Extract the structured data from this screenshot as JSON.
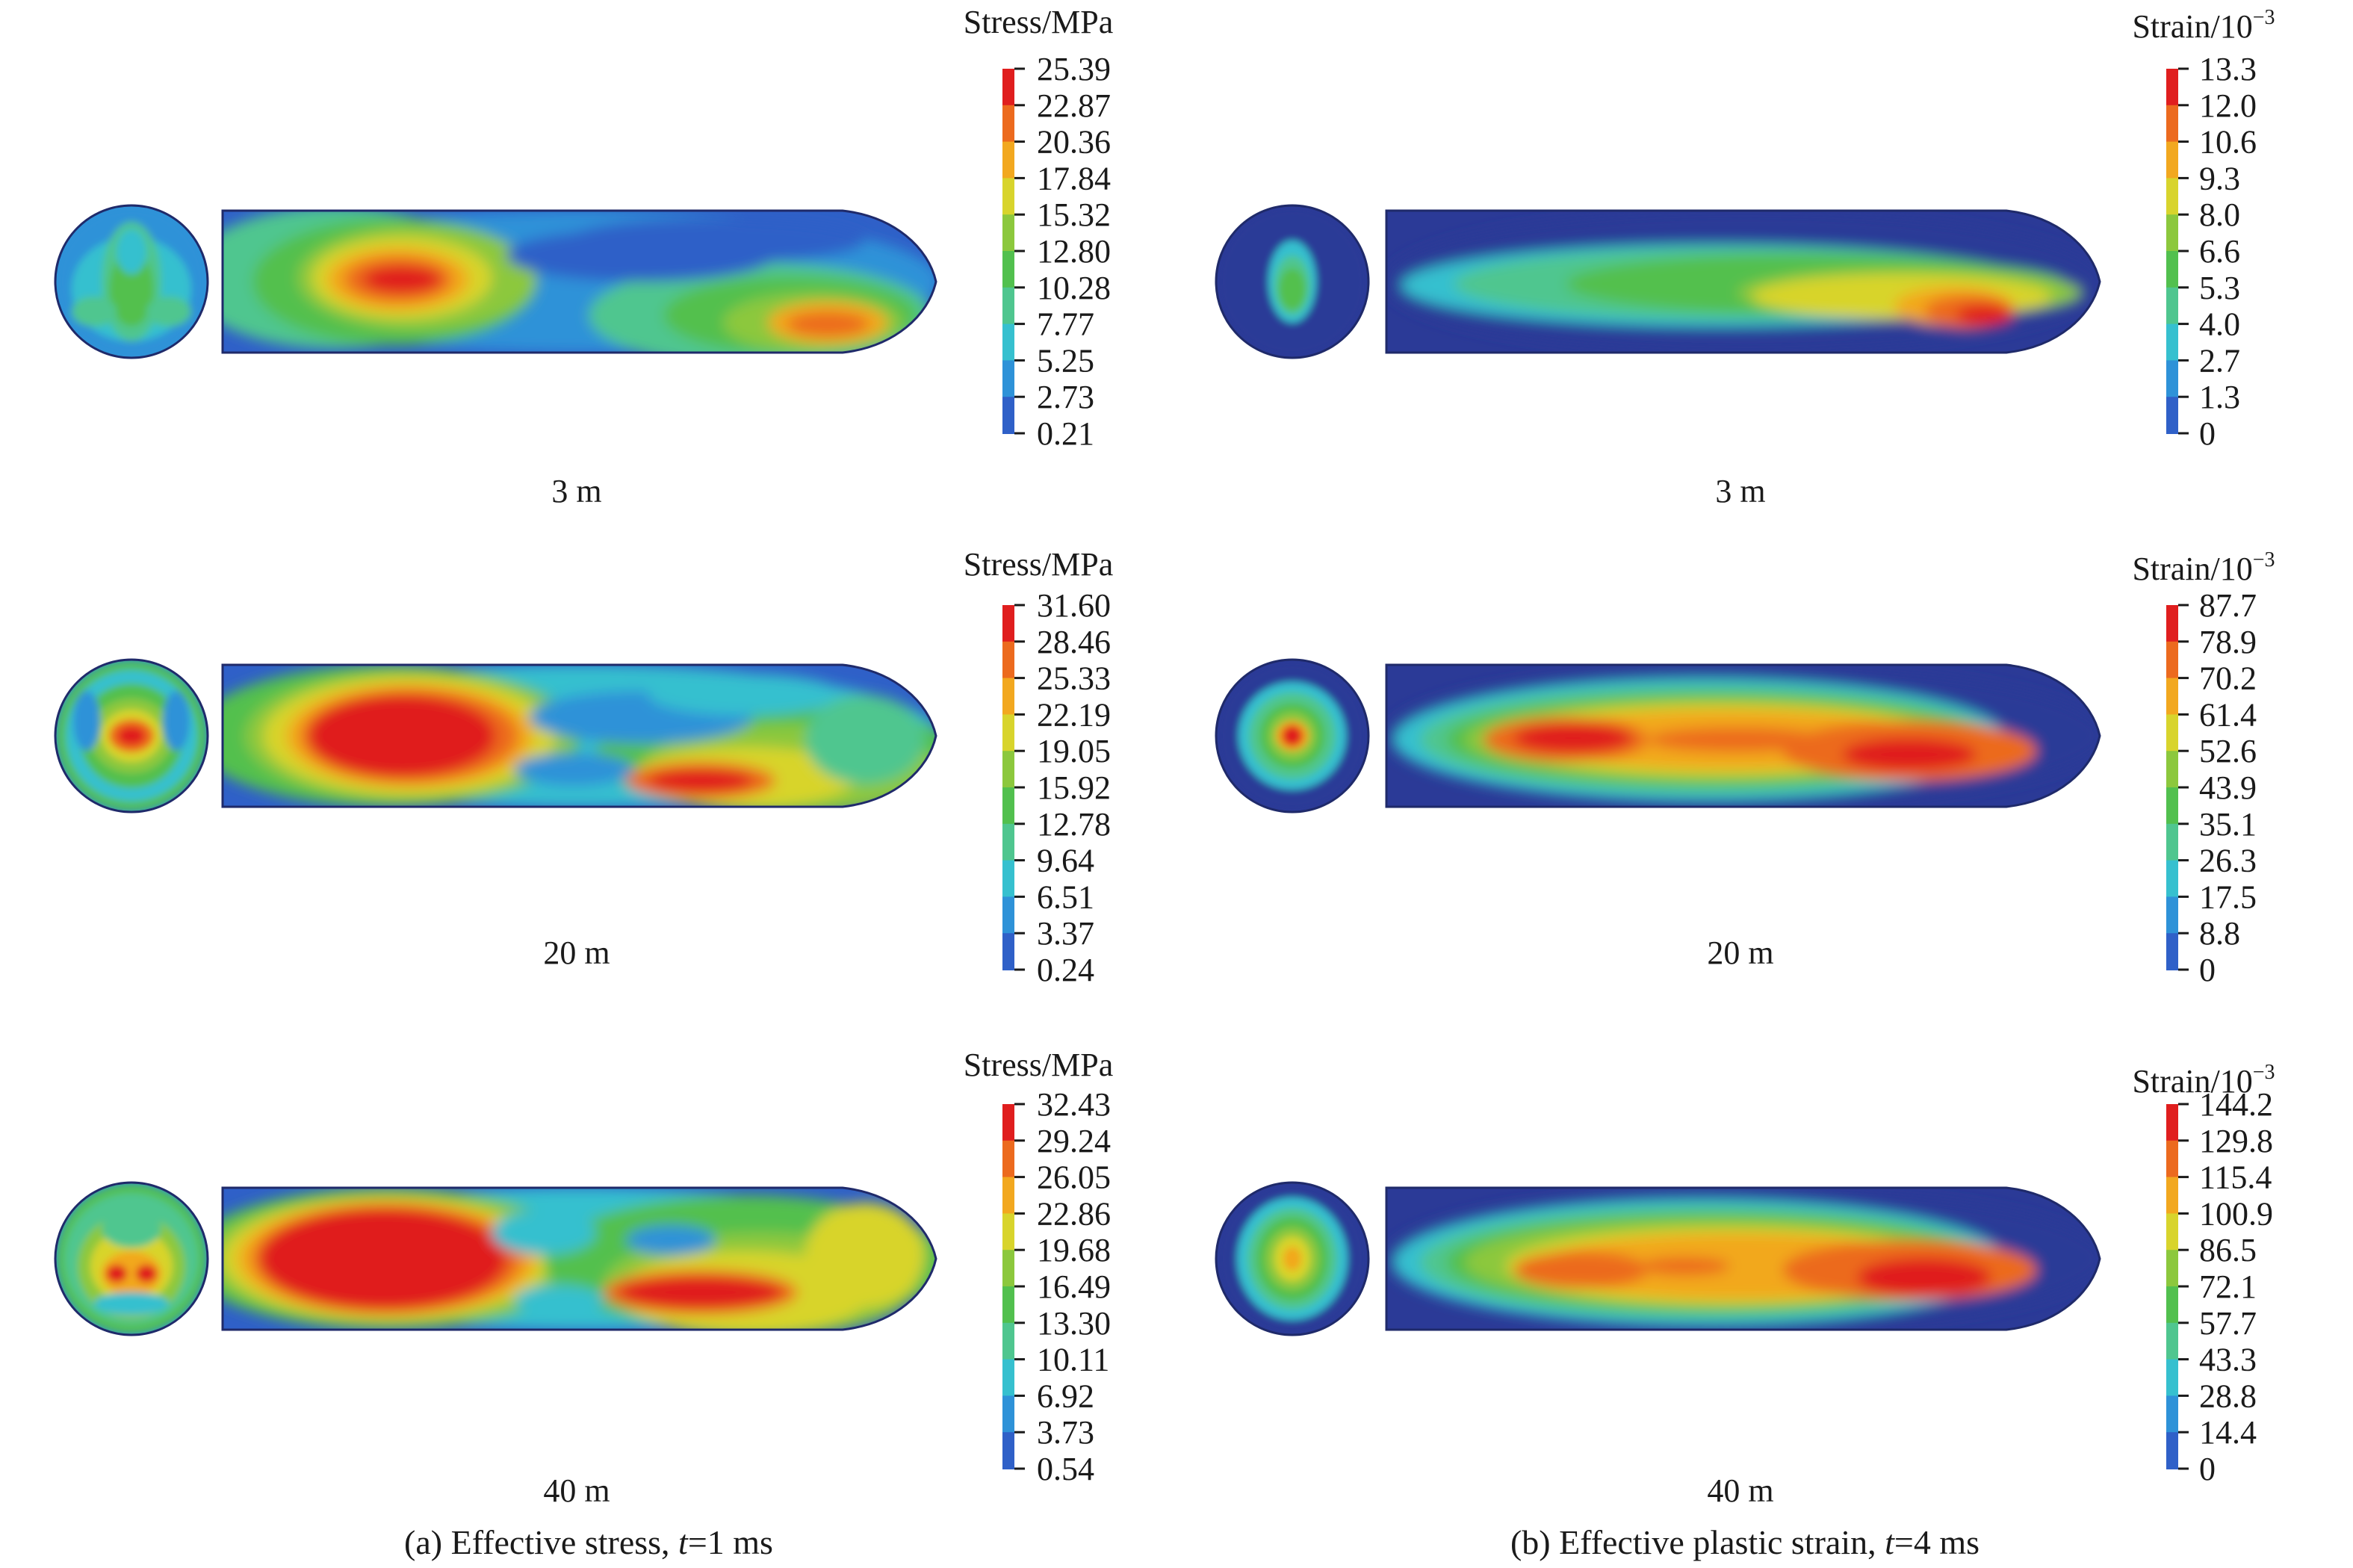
{
  "colors": {
    "scale": [
      "#2b3a97",
      "#2f60c8",
      "#2e92d8",
      "#36c0cf",
      "#4fc68f",
      "#52c04e",
      "#8cc83d",
      "#d8d42c",
      "#f2a81f",
      "#ec6a1e",
      "#e01e1e"
    ]
  },
  "panels": [
    {
      "caption_prefix": "(a) Effective stress, ",
      "caption_var": "t",
      "caption_suffix": "=1 ms",
      "quantity": "Effective stress",
      "time": "1 ms",
      "rows": [
        {
          "distance": "3 m",
          "legend_title": "Stress/MPa",
          "legend_title_base": "",
          "legend_title_sup": "",
          "ticks": [
            "25.39",
            "22.87",
            "20.36",
            "17.84",
            "15.32",
            "12.80",
            "10.28",
            "7.77",
            "5.25",
            "2.73",
            "0.21"
          ]
        },
        {
          "distance": "20 m",
          "legend_title": "Stress/MPa",
          "legend_title_base": "",
          "legend_title_sup": "",
          "ticks": [
            "31.60",
            "28.46",
            "25.33",
            "22.19",
            "19.05",
            "15.92",
            "12.78",
            "9.64",
            "6.51",
            "3.37",
            "0.24"
          ]
        },
        {
          "distance": "40 m",
          "legend_title": "Stress/MPa",
          "legend_title_base": "",
          "legend_title_sup": "",
          "ticks": [
            "32.43",
            "29.24",
            "26.05",
            "22.86",
            "19.68",
            "16.49",
            "13.30",
            "10.11",
            "6.92",
            "3.73",
            "0.54"
          ]
        }
      ]
    },
    {
      "caption_prefix": "(b) Effective plastic strain, ",
      "caption_var": "t",
      "caption_suffix": "=4 ms",
      "quantity": "Effective plastic strain",
      "time": "4 ms",
      "rows": [
        {
          "distance": "3 m",
          "legend_title": "",
          "legend_title_base": "Strain/10",
          "legend_title_sup": "−3",
          "ticks": [
            "13.3",
            "12.0",
            "10.6",
            "9.3",
            "8.0",
            "6.6",
            "5.3",
            "4.0",
            "2.7",
            "1.3",
            "0"
          ]
        },
        {
          "distance": "20 m",
          "legend_title": "",
          "legend_title_base": "Strain/10",
          "legend_title_sup": "−3",
          "ticks": [
            "87.7",
            "78.9",
            "70.2",
            "61.4",
            "52.6",
            "43.9",
            "35.1",
            "26.3",
            "17.5",
            "8.8",
            "0"
          ]
        },
        {
          "distance": "40 m",
          "legend_title": "",
          "legend_title_base": "Strain/10",
          "legend_title_sup": "−3",
          "ticks": [
            "144.2",
            "129.8",
            "115.4",
            "100.9",
            "86.5",
            "72.1",
            "57.7",
            "43.3",
            "28.8",
            "14.4",
            "0"
          ]
        }
      ]
    }
  ],
  "chart_data": {
    "type": "heatmap",
    "subtype": "contour-figure",
    "panels": [
      {
        "quantity": "Effective stress",
        "unit": "MPa",
        "time_ms": 1,
        "rows": [
          {
            "distance_m": 3,
            "range": [
              0.21,
              25.39
            ]
          },
          {
            "distance_m": 20,
            "range": [
              0.24,
              31.6
            ]
          },
          {
            "distance_m": 40,
            "range": [
              0.54,
              32.43
            ]
          }
        ]
      },
      {
        "quantity": "Effective plastic strain",
        "unit": "10^-3",
        "time_ms": 4,
        "rows": [
          {
            "distance_m": 3,
            "range": [
              0,
              13.3
            ]
          },
          {
            "distance_m": 20,
            "range": [
              0,
              87.7
            ]
          },
          {
            "distance_m": 40,
            "range": [
              0,
              144.2
            ]
          }
        ]
      }
    ]
  }
}
